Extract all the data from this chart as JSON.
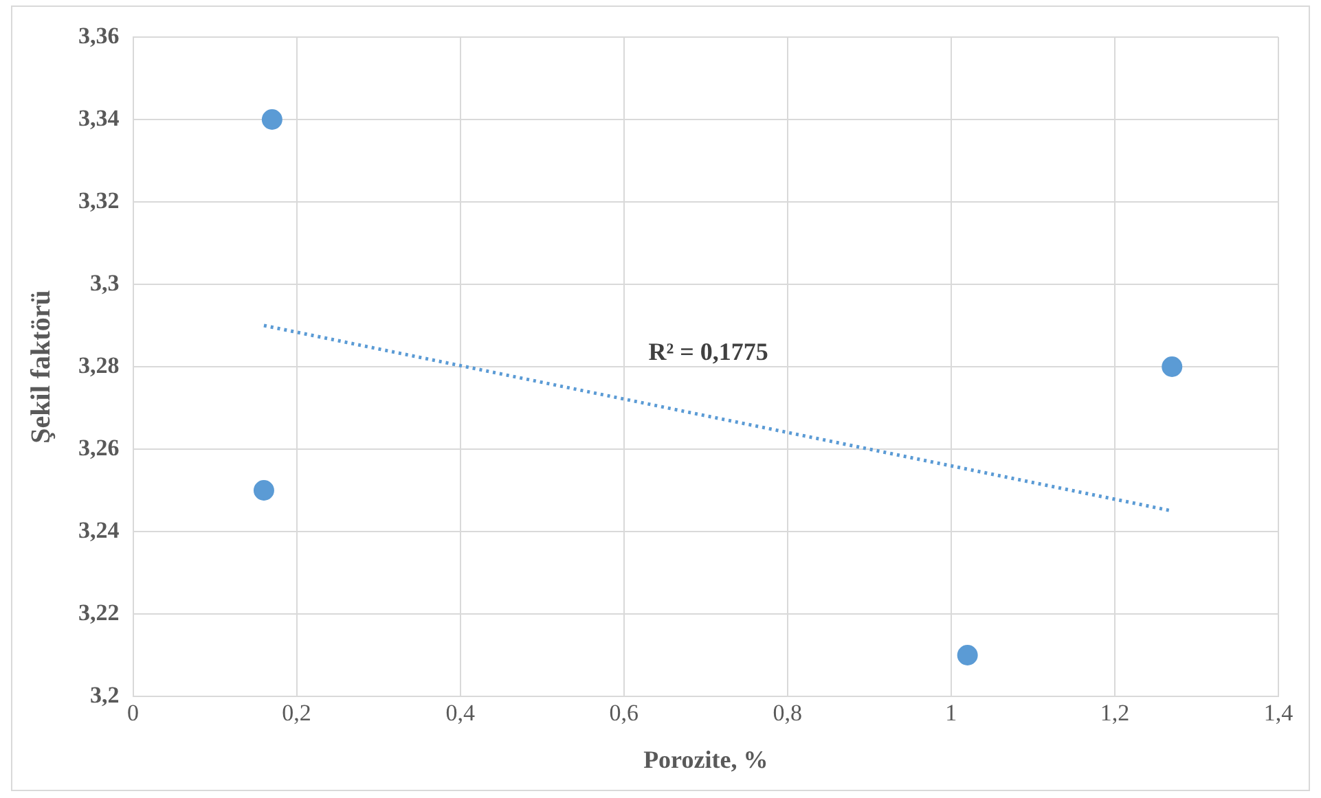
{
  "chart_data": {
    "type": "scatter",
    "xlabel": "Porozite, %",
    "ylabel": "Şekil faktörü",
    "series": [
      {
        "type": "scatter",
        "color": "#5b9bd5",
        "x": [
          0.17,
          0.16,
          1.02,
          1.27
        ],
        "values": [
          3.34,
          3.25,
          3.21,
          3.28
        ],
        "marker": "circle"
      },
      {
        "type": "line",
        "color": "#5b9bd5",
        "x": [
          0.16,
          1.27
        ],
        "values": [
          3.29,
          3.245
        ],
        "line_style": "dotted",
        "marker": "none"
      }
    ],
    "annotations": [
      "R² = 0,1775"
    ],
    "xlim": [
      0,
      1.4
    ],
    "ylim": [
      3.2,
      3.36
    ],
    "xticks": [
      0,
      {
        "value": 0.2,
        "label": "0,2"
      },
      {
        "value": 0.4,
        "label": "0,4"
      },
      {
        "value": 0.6,
        "label": "0,6"
      },
      {
        "value": 0.8,
        "label": "0,8"
      },
      1,
      {
        "value": 1.2,
        "label": "1,2"
      },
      {
        "value": 1.4,
        "label": "1,4"
      }
    ],
    "yticks": [
      {
        "value": 3.2,
        "label": "3,2"
      },
      {
        "value": 3.22,
        "label": "3,22"
      },
      {
        "value": 3.24,
        "label": "3,24"
      },
      {
        "value": 3.26,
        "label": "3,26"
      },
      {
        "value": 3.28,
        "label": "3,28"
      },
      {
        "value": 3.3,
        "label": "3,3"
      },
      {
        "value": 3.32,
        "label": "3,32"
      },
      {
        "value": 3.34,
        "label": "3,34"
      },
      {
        "value": 3.36,
        "label": "3,36"
      }
    ],
    "grid": true,
    "legend": false
  }
}
